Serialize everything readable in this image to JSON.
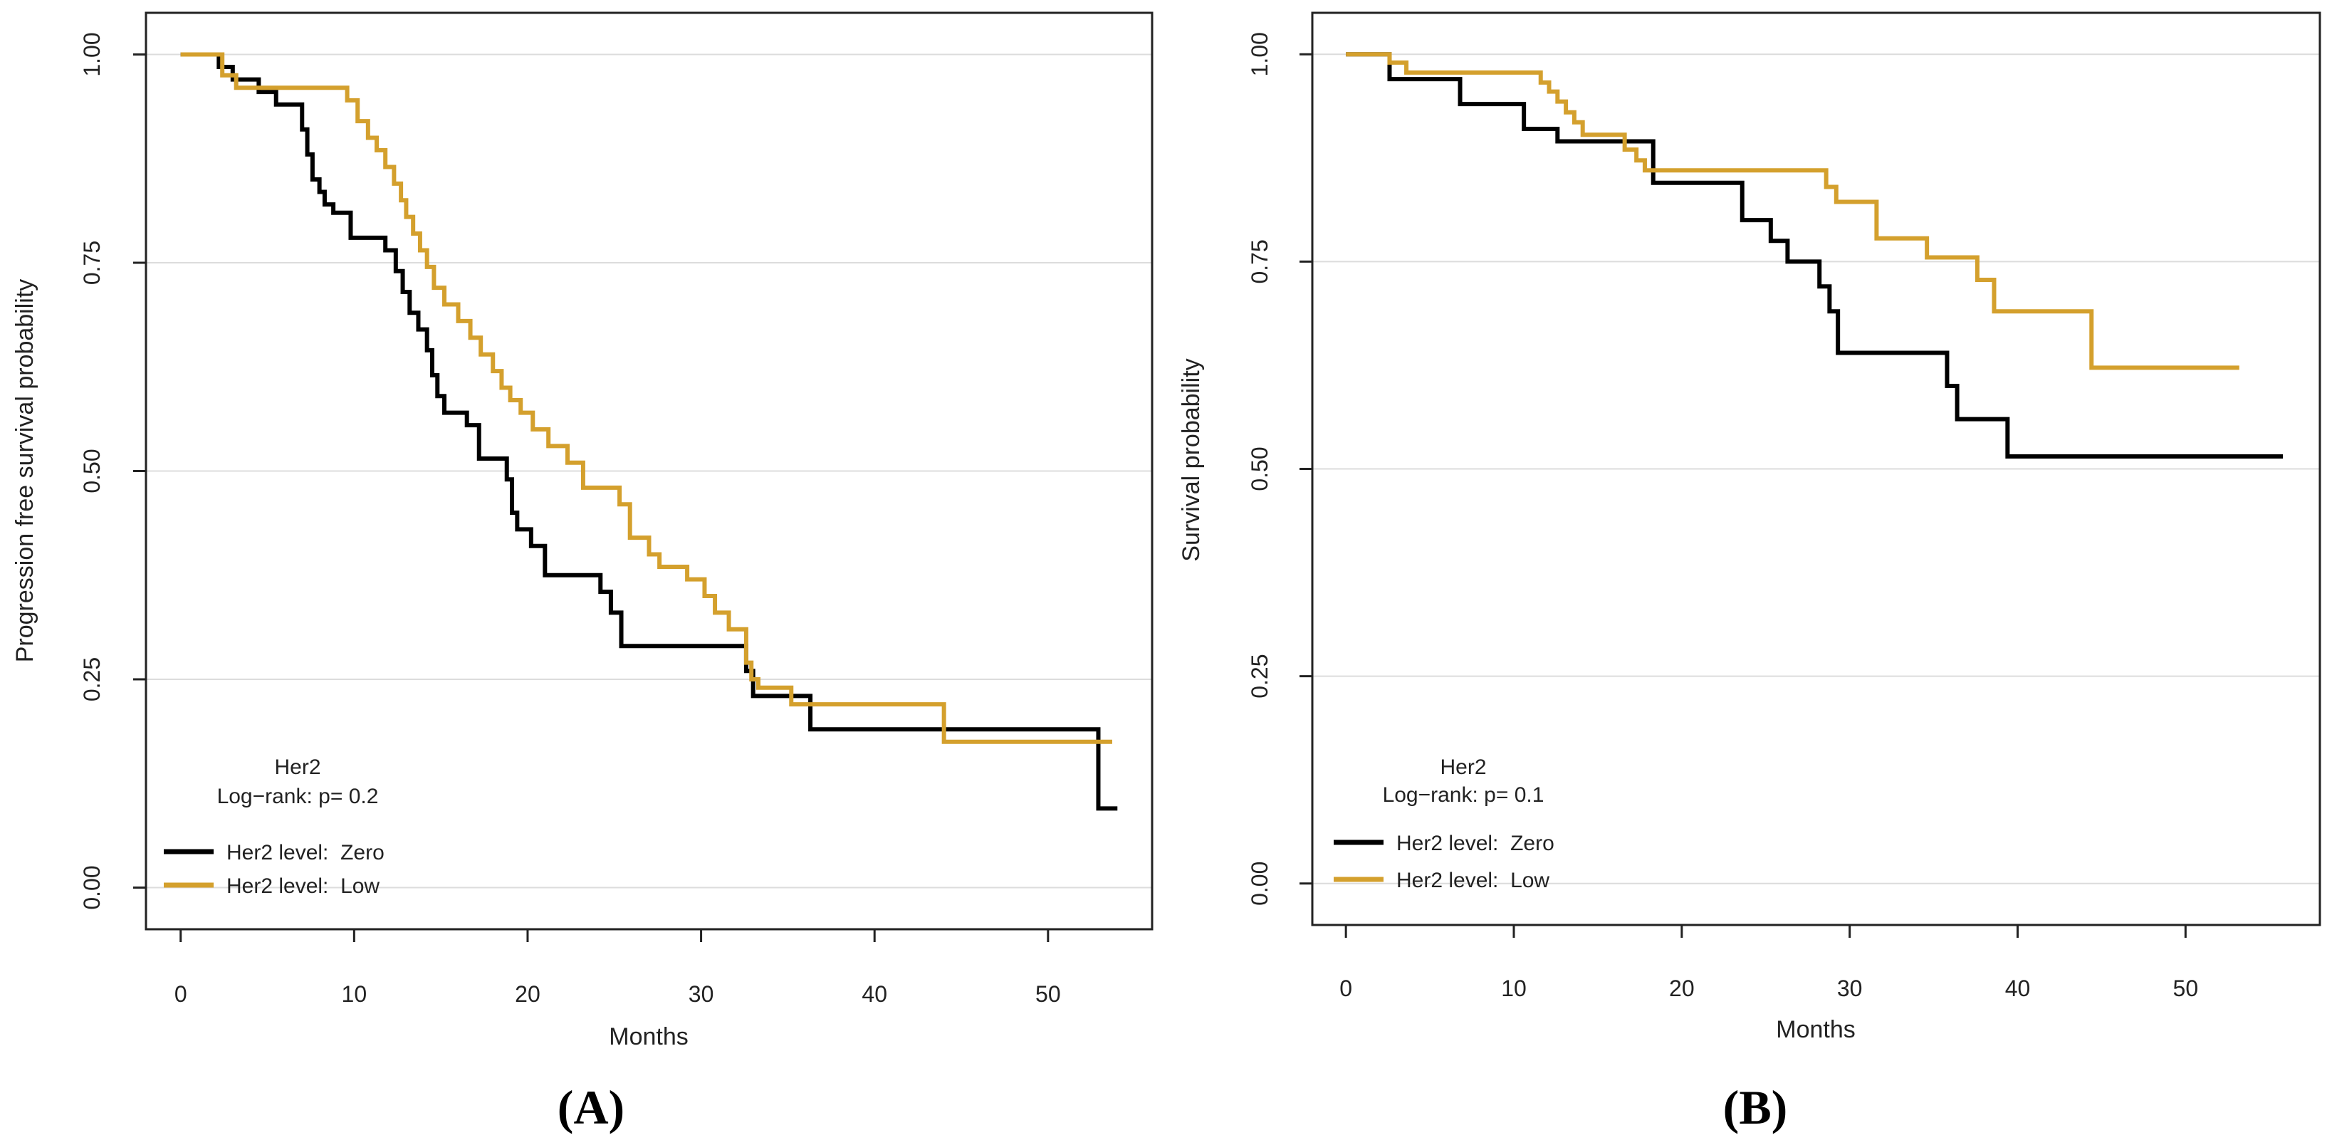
{
  "colors": {
    "zero": "#000000",
    "low": "#d4a02d",
    "grid": "#dcdcdc",
    "frame": "#222222"
  },
  "chart_data": [
    {
      "type": "line",
      "panel_label": "A",
      "panel_label_parts": [
        "(",
        "A",
        ")"
      ],
      "title": "",
      "xlabel": "Months",
      "ylabel": "Progression free survival probability",
      "xlim": [
        -2,
        56
      ],
      "ylim": [
        -0.05,
        1.05
      ],
      "x_ticks": [
        0,
        10,
        20,
        30,
        40,
        50
      ],
      "x_tick_labels": [
        "0",
        "10",
        "20",
        "30",
        "40",
        "50"
      ],
      "y_ticks": [
        0,
        0.25,
        0.5,
        0.75,
        1.0
      ],
      "y_tick_labels": [
        "0.00",
        "0.25",
        "0.50",
        "0.75",
        "1.00"
      ],
      "grid": "horizontal",
      "legend": {
        "title": "Her2",
        "subtitle": "Log−rank: p= 0.2",
        "placement": "bottom-left",
        "entries": [
          "Her2 level:  Zero",
          "Her2 level:  Low"
        ]
      },
      "series": [
        {
          "name": "Her2 level:  Zero",
          "color": "#000000",
          "step": true,
          "x": [
            0,
            2.2,
            3.0,
            4.5,
            5.5,
            7.0,
            7.3,
            7.6,
            8.0,
            8.3,
            8.8,
            9.8,
            11.8,
            12.4,
            12.8,
            13.2,
            13.7,
            14.2,
            14.5,
            14.8,
            15.2,
            16.5,
            17.2,
            18.8,
            19.1,
            19.4,
            20.2,
            21.0,
            24.2,
            24.8,
            25.4,
            32.6,
            33.0,
            36.3,
            52.9,
            54.0
          ],
          "y": [
            1.0,
            0.985,
            0.97,
            0.955,
            0.94,
            0.91,
            0.88,
            0.85,
            0.835,
            0.82,
            0.81,
            0.78,
            0.765,
            0.74,
            0.715,
            0.69,
            0.67,
            0.645,
            0.615,
            0.59,
            0.57,
            0.555,
            0.515,
            0.49,
            0.45,
            0.43,
            0.41,
            0.375,
            0.355,
            0.33,
            0.29,
            0.26,
            0.23,
            0.19,
            0.095,
            0.095
          ]
        },
        {
          "name": "Her2 level:  Low",
          "color": "#d4a02d",
          "step": true,
          "x": [
            0,
            2.4,
            3.2,
            9.6,
            10.2,
            10.8,
            11.3,
            11.8,
            12.3,
            12.7,
            13.0,
            13.4,
            13.8,
            14.2,
            14.6,
            15.2,
            16.0,
            16.7,
            17.3,
            18.0,
            18.5,
            19.0,
            19.6,
            20.3,
            21.2,
            22.3,
            23.2,
            25.3,
            25.9,
            27.0,
            27.6,
            29.2,
            30.2,
            30.8,
            31.6,
            32.6,
            32.9,
            33.3,
            35.2,
            44.0,
            53.7
          ],
          "y": [
            1.0,
            0.975,
            0.96,
            0.945,
            0.92,
            0.9,
            0.885,
            0.865,
            0.845,
            0.825,
            0.805,
            0.785,
            0.765,
            0.745,
            0.72,
            0.7,
            0.68,
            0.66,
            0.64,
            0.62,
            0.6,
            0.585,
            0.57,
            0.55,
            0.53,
            0.51,
            0.48,
            0.46,
            0.42,
            0.4,
            0.385,
            0.37,
            0.35,
            0.33,
            0.31,
            0.27,
            0.25,
            0.24,
            0.22,
            0.175,
            0.175
          ]
        }
      ]
    },
    {
      "type": "line",
      "panel_label": "B",
      "panel_label_parts": [
        "(",
        "B",
        ")"
      ],
      "title": "",
      "xlabel": "Months",
      "ylabel": "Survival probability",
      "xlim": [
        -2,
        58
      ],
      "ylim": [
        -0.05,
        1.05
      ],
      "x_ticks": [
        0,
        10,
        20,
        30,
        40,
        50
      ],
      "x_tick_labels": [
        "0",
        "10",
        "20",
        "30",
        "40",
        "50"
      ],
      "y_ticks": [
        0,
        0.25,
        0.5,
        0.75,
        1.0
      ],
      "y_tick_labels": [
        "0.00",
        "0.25",
        "0.50",
        "0.75",
        "1.00"
      ],
      "grid": "horizontal",
      "legend": {
        "title": "Her2",
        "subtitle": "Log−rank: p= 0.1",
        "placement": "bottom-left",
        "entries": [
          "Her2 level:  Zero",
          "Her2 level:  Low"
        ]
      },
      "series": [
        {
          "name": "Her2 level:  Zero",
          "color": "#000000",
          "step": true,
          "x": [
            0,
            2.6,
            6.8,
            10.6,
            12.6,
            18.3,
            23.6,
            25.3,
            26.3,
            28.2,
            28.8,
            29.3,
            35.8,
            36.4,
            39.4,
            55.8
          ],
          "y": [
            1.0,
            0.97,
            0.94,
            0.91,
            0.895,
            0.845,
            0.8,
            0.775,
            0.75,
            0.72,
            0.69,
            0.64,
            0.6,
            0.56,
            0.515,
            0.515
          ]
        },
        {
          "name": "Her2 level:  Low",
          "color": "#d4a02d",
          "step": true,
          "x": [
            0,
            2.6,
            3.6,
            11.6,
            12.1,
            12.6,
            13.1,
            13.6,
            14.1,
            16.6,
            17.3,
            17.8,
            28.6,
            29.2,
            31.6,
            34.6,
            37.6,
            38.6,
            44.4,
            53.2
          ],
          "y": [
            1.0,
            0.99,
            0.978,
            0.966,
            0.955,
            0.943,
            0.93,
            0.918,
            0.903,
            0.885,
            0.872,
            0.86,
            0.84,
            0.822,
            0.778,
            0.755,
            0.728,
            0.69,
            0.622,
            0.622
          ]
        }
      ]
    }
  ]
}
